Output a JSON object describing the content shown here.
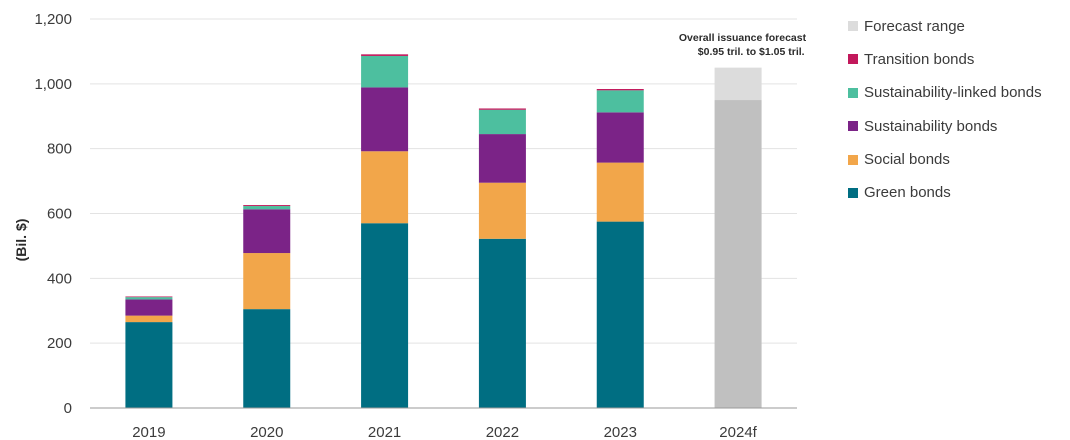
{
  "chart_data": {
    "type": "bar",
    "stacked": true,
    "categories": [
      "2019",
      "2020",
      "2021",
      "2022",
      "2023",
      "2024f"
    ],
    "ylabel": "(Bil. $)",
    "ylim": [
      0,
      1200
    ],
    "yticks": [
      0,
      200,
      400,
      600,
      800,
      1000,
      1200
    ],
    "ytick_labels": [
      "0",
      "200",
      "400",
      "600",
      "800",
      "1,000",
      "1,200"
    ],
    "grid": "horizontal",
    "legend_position": "right",
    "legend_order": [
      "Forecast range",
      "Transition bonds",
      "Sustainability-linked bonds",
      "Sustainability bonds",
      "Social bonds",
      "Green bonds"
    ],
    "series": [
      {
        "name": "Green bonds",
        "color": "#006e82",
        "values": [
          265,
          305,
          570,
          522,
          575,
          null
        ]
      },
      {
        "name": "Social bonds",
        "color": "#f2a64a",
        "values": [
          20,
          173,
          222,
          173,
          182,
          null
        ]
      },
      {
        "name": "Sustainability bonds",
        "color": "#7b2387",
        "values": [
          50,
          135,
          197,
          150,
          155,
          null
        ]
      },
      {
        "name": "Sustainability-linked bonds",
        "color": "#4dbf9f",
        "values": [
          7,
          10,
          97,
          75,
          68,
          null
        ]
      },
      {
        "name": "Transition bonds",
        "color": "#c2185b",
        "values": [
          2,
          3,
          5,
          4,
          4,
          null
        ]
      }
    ],
    "forecast": {
      "category": "2024f",
      "base_value": 950,
      "base_color": "#c0c0c0",
      "range": [
        950,
        1050
      ],
      "range_series": "Forecast range",
      "range_color": "#dcdcdc"
    },
    "annotation": {
      "target": "2024f",
      "lines": [
        "Overall issuance forecast",
        "$0.95 tril. to $1.05 tril."
      ]
    }
  }
}
